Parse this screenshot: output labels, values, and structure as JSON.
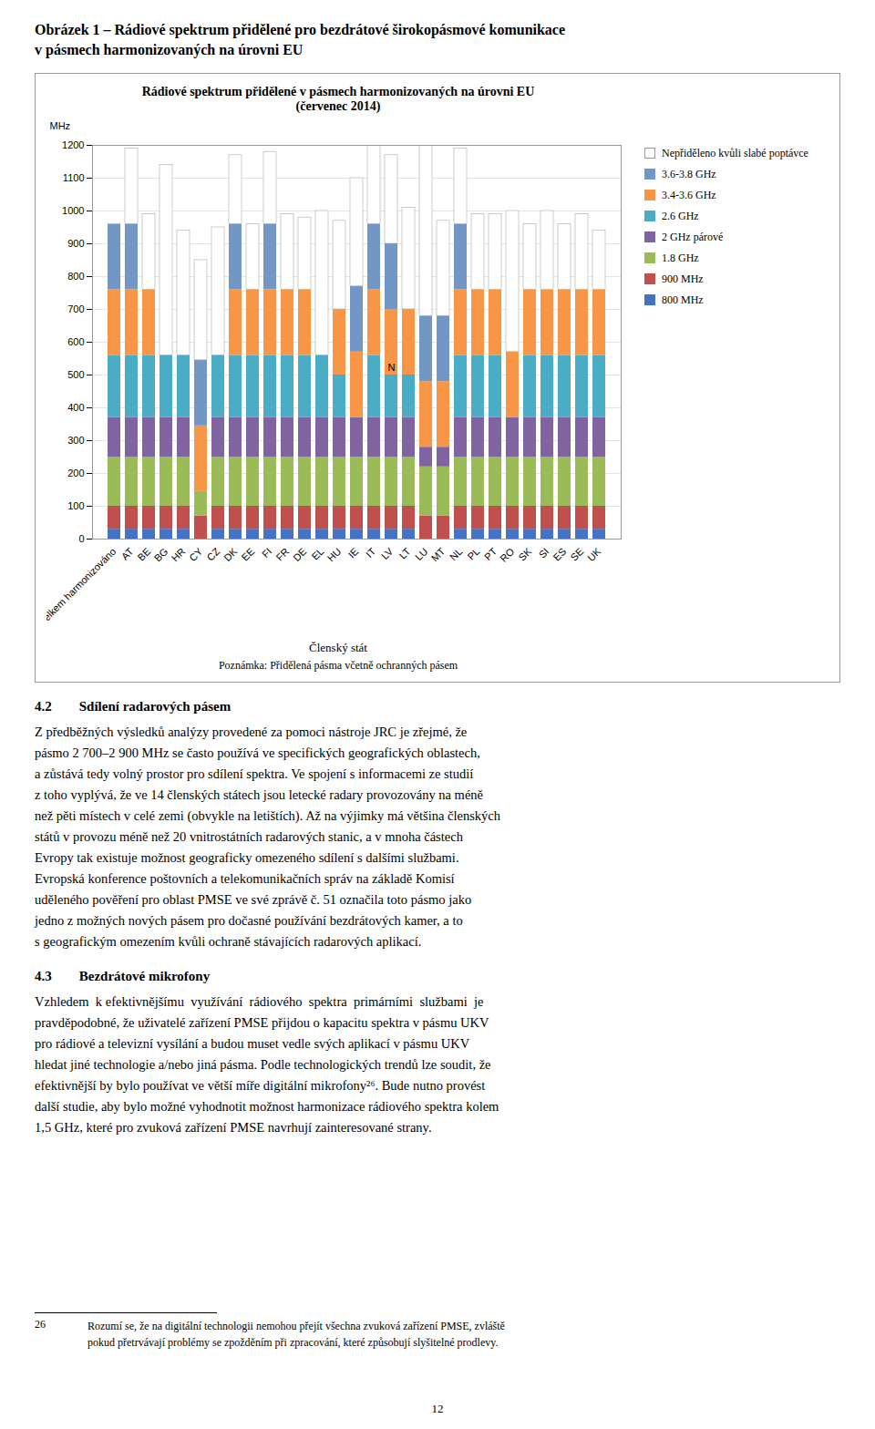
{
  "page": {
    "title_lines": [
      "Obrázek 1 – Rádiové spektrum přidělené pro bezdrátové širokopásmové komunikace",
      "v pásmech harmonizovaných na úrovni EU"
    ],
    "sections": [
      {
        "title": "4.2  Sdílení radarových pásem",
        "body": "Z předběžných výsledků analýzy provedené za pomoci nástroje JRC je zřejmé, že\npásmo 2 700–2 900 MHz se často používá ve specifických geografických oblastech,\na zůstává tedy volný prostor pro sdílení spektra. Ve spojení s informacemi ze studií\nz toho vyplývá, že ve 14 členských státech jsou letecké radary provozovány na méně\nnež pěti místech v celé zemi (obvykle na letištích). Až na výjimky má většina členských\nstátů v provozu méně než 20 vnitrostátních radarových stanic, a v mnoha částech\nEvropy tak existuje možnost geograficky omezeného sdílení s dalšími službami.\nEvropská konference poštovních a telekomunikačních správ na základě Komisí\nuděleného pověření pro oblast PMSE ve své zprávě č. 51 označila toto pásmo jako\njedno z možných nových pásem pro dočasné používání bezdrátových kamer, a to\ns geografickým omezením kvůli ochraně stávajících radarových aplikací."
      },
      {
        "title": "4.3  Bezdrátové mikrofony",
        "body": "Vzhledem  k efektivnějšímu  využívání  rádiového  spektra  primárními  službami  je\npravděpodobné, že uživatelé zařízení PMSE přijdou o kapacitu spektra v pásmu UKV\npro rádiové a televizní vysílání a budou muset vedle svých aplikací v pásmu UKV\nhledat jiné technologie a/nebo jiná pásma. Podle technologických trendů lze soudit, že\nefektivnější by bylo používat ve větší míře digitální mikrofony²⁶. Bude nutno provést\ndalší studie, aby bylo možné vyhodnotit možnost harmonizace rádiového spektra kolem\n1,5 GHz, které pro zvuková zařízení PMSE navrhují zainteresované strany."
      }
    ],
    "footnote": {
      "number": "26",
      "text": "Rozumí se, že na digitální technologii nemohou přejít všechna zvuková zařízení PMSE, zvláště\npokud přetrvávají problémy se zpožděním při zpracování, které způsobují slyšitelné prodlevy."
    },
    "page_number": "12"
  },
  "chart_data": {
    "type": "bar",
    "stacked": true,
    "title": "Rádiové spektrum přidělené v pásmech harmonizovaných na úrovni EU\n(červenec 2014)",
    "xlabel": "Členský stát",
    "ylabel": "MHz",
    "note": "Poznámka: Přidělená pásma včetně ochranných pásem",
    "categories": [
      "Celkem harmonizováno",
      "AT",
      "BE",
      "BG",
      "HR",
      "CY",
      "CZ",
      "DK",
      "EE",
      "FI",
      "FR",
      "DE",
      "EL",
      "HU",
      "IE",
      "IT",
      "LV",
      "LT",
      "LU",
      "MT",
      "NL",
      "PL",
      "PT",
      "RO",
      "SK",
      "SI",
      "ES",
      "SE",
      "UK"
    ],
    "series": [
      {
        "name": "800 MHz",
        "color": "#4472C4",
        "values": [
          30,
          30,
          30,
          30,
          30,
          0,
          30,
          30,
          30,
          30,
          30,
          30,
          30,
          30,
          30,
          30,
          30,
          30,
          0,
          0,
          30,
          30,
          30,
          30,
          30,
          30,
          30,
          30,
          30
        ]
      },
      {
        "name": "900 MHz",
        "color": "#C0504D",
        "values": [
          70,
          70,
          70,
          70,
          70,
          70,
          70,
          70,
          70,
          70,
          70,
          70,
          70,
          70,
          70,
          70,
          70,
          70,
          70,
          70,
          70,
          70,
          70,
          70,
          70,
          70,
          70,
          70,
          70
        ]
      },
      {
        "name": "1.8 GHz",
        "color": "#9BBB59",
        "values": [
          150,
          150,
          150,
          150,
          150,
          75,
          150,
          150,
          150,
          150,
          150,
          150,
          150,
          150,
          150,
          150,
          150,
          150,
          150,
          150,
          150,
          150,
          150,
          150,
          150,
          150,
          150,
          150,
          150
        ]
      },
      {
        "name": "2 GHz párové",
        "color": "#8064A2",
        "values": [
          120,
          120,
          120,
          120,
          120,
          0,
          120,
          120,
          120,
          120,
          120,
          120,
          120,
          120,
          120,
          120,
          120,
          120,
          60,
          60,
          120,
          120,
          120,
          120,
          120,
          120,
          120,
          120,
          120
        ]
      },
      {
        "name": "2.6 GHz",
        "color": "#4BACC6",
        "values": [
          190,
          190,
          190,
          190,
          190,
          0,
          190,
          190,
          190,
          190,
          190,
          190,
          190,
          130,
          0,
          190,
          130,
          130,
          0,
          0,
          190,
          190,
          190,
          0,
          190,
          190,
          190,
          190,
          190
        ]
      },
      {
        "name": "3.4-3.6 GHz",
        "color": "#F79646",
        "values": [
          200,
          200,
          200,
          0,
          0,
          200,
          0,
          200,
          200,
          200,
          200,
          200,
          0,
          200,
          200,
          200,
          200,
          200,
          200,
          200,
          200,
          200,
          200,
          200,
          200,
          200,
          200,
          200,
          200
        ]
      },
      {
        "name": "3.6-3.8 GHz",
        "color": "#7397C4",
        "values": [
          200,
          200,
          0,
          0,
          0,
          200,
          0,
          200,
          0,
          200,
          0,
          0,
          0,
          0,
          200,
          200,
          200,
          0,
          200,
          200,
          200,
          0,
          0,
          0,
          0,
          0,
          0,
          0,
          0
        ]
      },
      {
        "name": "Nepřiděleno kvůli slabé poptávce",
        "color": "#FFFFFF",
        "values": [
          0,
          230,
          230,
          580,
          380,
          305,
          390,
          210,
          200,
          220,
          230,
          220,
          440,
          270,
          330,
          240,
          270,
          310,
          520,
          290,
          230,
          230,
          230,
          430,
          200,
          240,
          200,
          230,
          180
        ]
      }
    ],
    "ylim": [
      0,
      1200
    ],
    "yticks": [
      0,
      100,
      200,
      300,
      400,
      500,
      600,
      700,
      800,
      900,
      1000,
      1100,
      1200
    ],
    "grid": true,
    "legend": "right",
    "annotations": [
      {
        "text": "N",
        "x": "LV",
        "y": 510
      }
    ]
  }
}
